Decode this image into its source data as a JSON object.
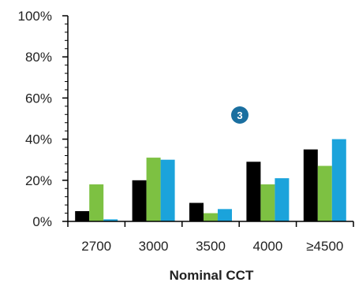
{
  "chart_data": {
    "type": "bar",
    "categories": [
      "2700",
      "3000",
      "3500",
      "4000",
      "≥4500"
    ],
    "series": [
      {
        "color": "#000000",
        "values": [
          5,
          20,
          9,
          29,
          35
        ]
      },
      {
        "color": "#7dc142",
        "values": [
          18,
          31,
          4,
          18,
          27
        ]
      },
      {
        "color": "#1ba3db",
        "values": [
          1,
          30,
          6,
          21,
          40
        ]
      }
    ],
    "title": "",
    "xlabel": "Nominal CCT",
    "ylabel": "",
    "ylim": [
      0,
      100
    ],
    "yticks": [
      "0%",
      "20%",
      "40%",
      "60%",
      "80%",
      "100%"
    ],
    "grid": false,
    "annotation": {
      "text": "3",
      "color": "#1a6fa0"
    }
  }
}
